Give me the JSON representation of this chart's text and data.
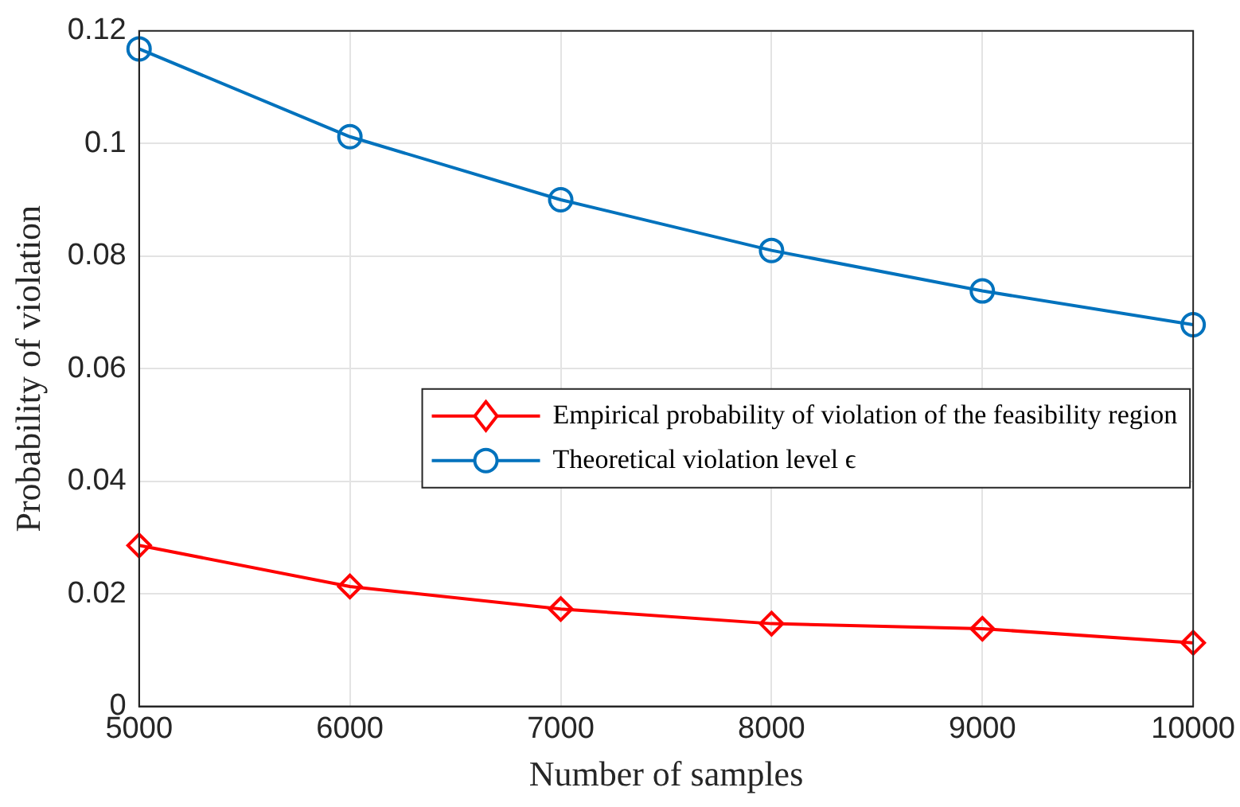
{
  "chart_data": {
    "type": "line",
    "xlabel": "Number of samples",
    "ylabel": "Probability of violation",
    "x": [
      5000,
      6000,
      7000,
      8000,
      9000,
      10000
    ],
    "xlim": [
      5000,
      10000
    ],
    "xticks": [
      5000,
      6000,
      7000,
      8000,
      9000,
      10000
    ],
    "ylim": [
      0,
      0.12
    ],
    "yticks": [
      0,
      0.02,
      0.04,
      0.06,
      0.08,
      0.1,
      0.12
    ],
    "grid": true,
    "legend": "right",
    "line_style": "solid",
    "series": [
      {
        "name": "Empirical probability of violation of the feasibility region",
        "color": "#ff0000",
        "marker": "diamond",
        "values": [
          0.0286,
          0.0213,
          0.0173,
          0.0147,
          0.0138,
          0.0113
        ]
      },
      {
        "name": "Theoretical violation level ϵ",
        "color": "#0072bd",
        "marker": "circle",
        "values": [
          0.1168,
          0.1012,
          0.09,
          0.081,
          0.0738,
          0.0678
        ]
      }
    ]
  }
}
